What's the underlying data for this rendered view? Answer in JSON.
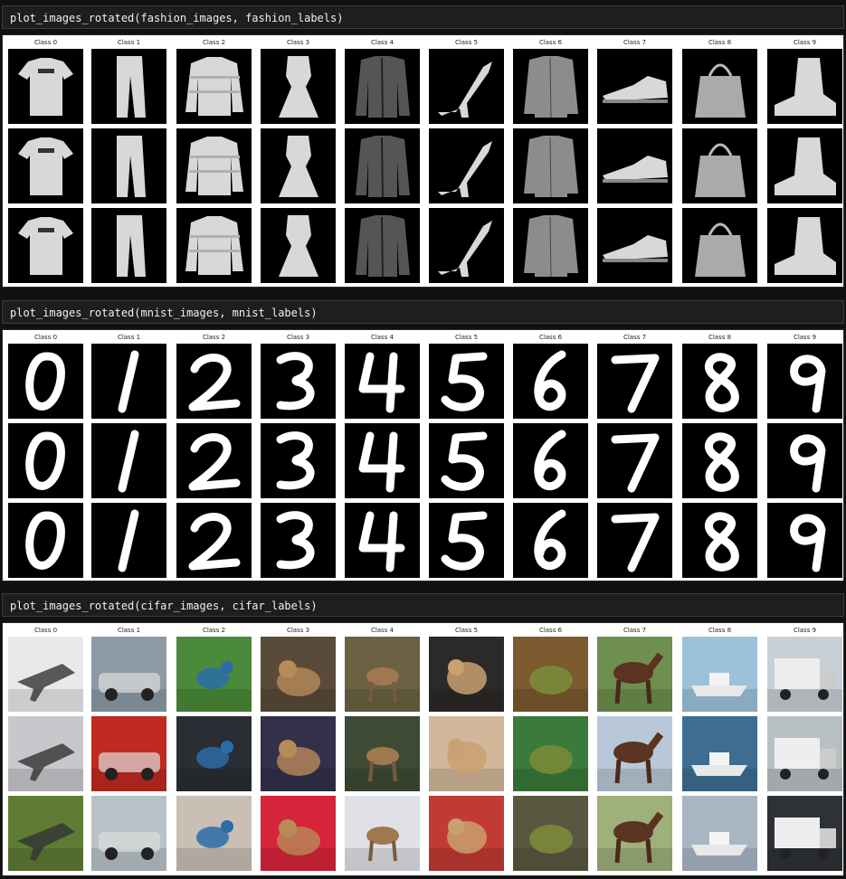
{
  "cells": [
    {
      "code": "plot_images_rotated(fashion_images, fashion_labels)",
      "dataset": "fashion",
      "class_labels": [
        "Class 0",
        "Class 1",
        "Class 2",
        "Class 3",
        "Class 4",
        "Class 5",
        "Class 6",
        "Class 7",
        "Class 8",
        "Class 9"
      ],
      "tiles": [
        [
          "t-shirt",
          "trouser",
          "pullover",
          "dress",
          "coat",
          "sandal",
          "shirt",
          "sneaker",
          "bag",
          "ankle-boot"
        ],
        [
          "t-shirt",
          "trouser",
          "pullover",
          "dress",
          "coat",
          "sandal",
          "shirt",
          "sneaker",
          "bag",
          "ankle-boot"
        ],
        [
          "t-shirt",
          "trouser",
          "pullover",
          "dress",
          "coat",
          "sandal",
          "shirt",
          "sneaker",
          "bag",
          "ankle-boot"
        ]
      ]
    },
    {
      "code": "plot_images_rotated(mnist_images, mnist_labels)",
      "dataset": "mnist",
      "class_labels": [
        "Class 0",
        "Class 1",
        "Class 2",
        "Class 3",
        "Class 4",
        "Class 5",
        "Class 6",
        "Class 7",
        "Class 8",
        "Class 9"
      ],
      "tiles": [
        [
          "digit-0",
          "digit-1",
          "digit-2",
          "digit-3",
          "digit-4",
          "digit-5",
          "digit-6",
          "digit-7",
          "digit-8",
          "digit-9"
        ],
        [
          "digit-0",
          "digit-1",
          "digit-2",
          "digit-3",
          "digit-4",
          "digit-5",
          "digit-6",
          "digit-7",
          "digit-8",
          "digit-9"
        ],
        [
          "digit-0",
          "digit-1",
          "digit-2",
          "digit-3",
          "digit-4",
          "digit-5",
          "digit-6",
          "digit-7",
          "digit-8",
          "digit-9"
        ]
      ]
    },
    {
      "code": "plot_images_rotated(cifar_images, cifar_labels)",
      "dataset": "cifar",
      "class_labels": [
        "Class 0",
        "Class 1",
        "Class 2",
        "Class 3",
        "Class 4",
        "Class 5",
        "Class 6",
        "Class 7",
        "Class 8",
        "Class 9"
      ],
      "tiles": [
        [
          "airplane",
          "automobile",
          "bird",
          "cat",
          "deer",
          "dog",
          "frog",
          "horse",
          "ship",
          "truck"
        ],
        [
          "airplane",
          "automobile",
          "bird",
          "cat",
          "deer",
          "dog",
          "frog",
          "horse",
          "ship",
          "truck"
        ],
        [
          "airplane",
          "automobile",
          "bird",
          "cat",
          "deer",
          "dog",
          "frog",
          "horse",
          "ship",
          "truck"
        ]
      ],
      "photo_colors": [
        [
          "#e9e9eb",
          "#8d9aa6",
          "#4b8a3a",
          "#5a4a3a",
          "#6b6244",
          "#2c2a28",
          "#7a5a2e",
          "#6f8f4e",
          "#9cc2da",
          "#c9cfd6"
        ],
        [
          "#c8c8cc",
          "#c02a20",
          "#2a2d33",
          "#33304a",
          "#3e4a34",
          "#d2b79a",
          "#3a7a3a",
          "#b8c8d8",
          "#3d6e92",
          "#b9c0c4"
        ],
        [
          "#5e7c34",
          "#b8c2c6",
          "#c9bfb5",
          "#d6253a",
          "#dfe1e6",
          "#c23a34",
          "#5a5740",
          "#9fb07a",
          "#a8b6c4",
          "#2e3236"
        ]
      ]
    }
  ]
}
